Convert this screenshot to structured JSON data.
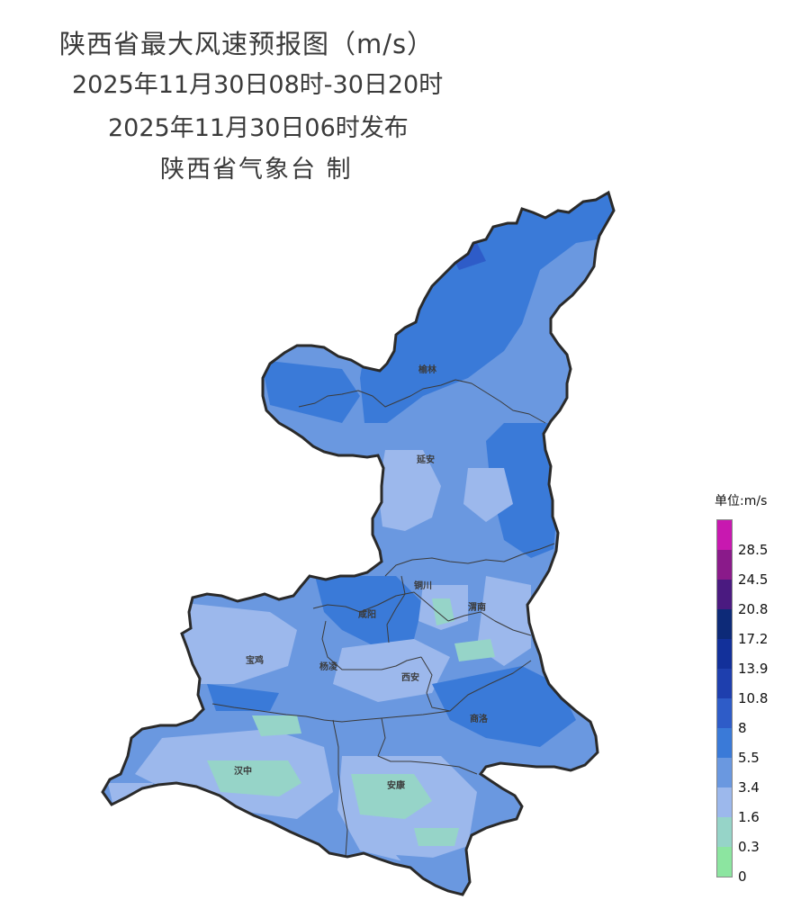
{
  "header": {
    "title_line1": "陕西省最大风速预报图（m/s）",
    "title_line2": "2025年11月30日08时-30日20时",
    "title_line3": "2025年11月30日06时发布",
    "title_line4": "陕西省气象台 制"
  },
  "cities": [
    {
      "name": "榆林",
      "label": "榆林"
    },
    {
      "name": "延安",
      "label": "延安"
    },
    {
      "name": "铜川",
      "label": "铜川"
    },
    {
      "name": "渭南",
      "label": "渭南"
    },
    {
      "name": "咸阳",
      "label": "咸阳"
    },
    {
      "name": "宝鸡",
      "label": "宝鸡"
    },
    {
      "name": "杨凌",
      "label": "杨凌"
    },
    {
      "name": "西安",
      "label": "西安"
    },
    {
      "name": "商洛",
      "label": "商洛"
    },
    {
      "name": "汉中",
      "label": "汉中"
    },
    {
      "name": "安康",
      "label": "安康"
    }
  ],
  "legend": {
    "unit_label": "单位:m/s",
    "ticks": [
      "28.5",
      "24.5",
      "20.8",
      "17.2",
      "13.9",
      "10.8",
      "8",
      "5.5",
      "3.4",
      "1.6",
      "0.3",
      "0"
    ],
    "colors_top_to_bottom": [
      "#c818b0",
      "#8a1a8a",
      "#4a1a80",
      "#0d2a78",
      "#12309a",
      "#1e3fae",
      "#2e5cc8",
      "#3a7ad8",
      "#6a98e0",
      "#9cb8ec",
      "#96d4c8",
      "#8ce5a0"
    ]
  },
  "colors": {
    "wind_5_5_to_8": "#3a7ad8",
    "wind_3_4_to_5_5": "#6a98e0",
    "wind_1_6_to_3_4": "#9cb8ec",
    "wind_0_3_to_1_6": "#96d4c8",
    "boundary": "#333333"
  }
}
